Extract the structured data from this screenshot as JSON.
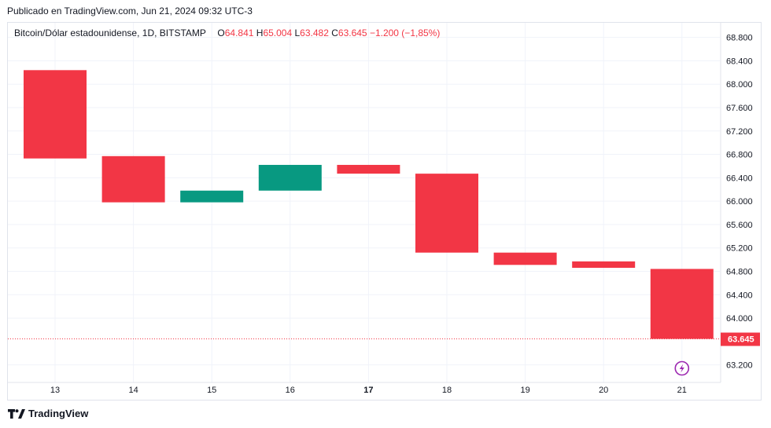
{
  "header": {
    "published": "Publicado en TradingView.com, Jun 21, 2024 09:32 UTC-3"
  },
  "legend": {
    "symbol": "Bitcoin/Dólar estadounidense, 1D, BITSTAMP",
    "o_label": "O",
    "o_value": "64.841",
    "h_label": "H",
    "h_value": "65.004",
    "l_label": "L",
    "l_value": "63.482",
    "c_label": "C",
    "c_value": "63.645",
    "change": "−1.200 (−1,85%)"
  },
  "colors": {
    "up": "#089981",
    "down": "#f23645",
    "grid": "#f0f3fa",
    "text": "#131722",
    "alert": "#9c27b0"
  },
  "chart_data": {
    "type": "candlestick",
    "x_label": "",
    "y_label": "",
    "ylim": [
      62.9,
      69.05
    ],
    "grid": true,
    "y_ticks": [
      63.2,
      64.0,
      64.4,
      64.8,
      65.2,
      65.6,
      66.0,
      66.4,
      66.8,
      67.2,
      67.6,
      68.0,
      68.4,
      68.8
    ],
    "y_tick_labels": [
      "63.200",
      "64.000",
      "64.400",
      "64.800",
      "65.200",
      "65.600",
      "66.000",
      "66.400",
      "66.800",
      "67.200",
      "67.600",
      "68.000",
      "68.400",
      "68.800"
    ],
    "categories": [
      "13",
      "14",
      "15",
      "16",
      "17",
      "18",
      "19",
      "20",
      "21"
    ],
    "bold_categories": [
      "17"
    ],
    "candles": [
      {
        "x": "13",
        "open": 68.24,
        "close": 66.73
      },
      {
        "x": "14",
        "open": 66.77,
        "close": 65.98
      },
      {
        "x": "15",
        "open": 65.98,
        "close": 66.18
      },
      {
        "x": "16",
        "open": 66.18,
        "close": 66.62
      },
      {
        "x": "17",
        "open": 66.62,
        "close": 66.47
      },
      {
        "x": "18",
        "open": 66.47,
        "close": 65.12
      },
      {
        "x": "19",
        "open": 65.12,
        "close": 64.91
      },
      {
        "x": "20",
        "open": 64.97,
        "close": 64.86
      },
      {
        "x": "21",
        "open": 64.841,
        "close": 63.645
      }
    ],
    "last_price": 63.645,
    "last_price_label": "63.645"
  },
  "footer": {
    "brand": "TradingView"
  }
}
